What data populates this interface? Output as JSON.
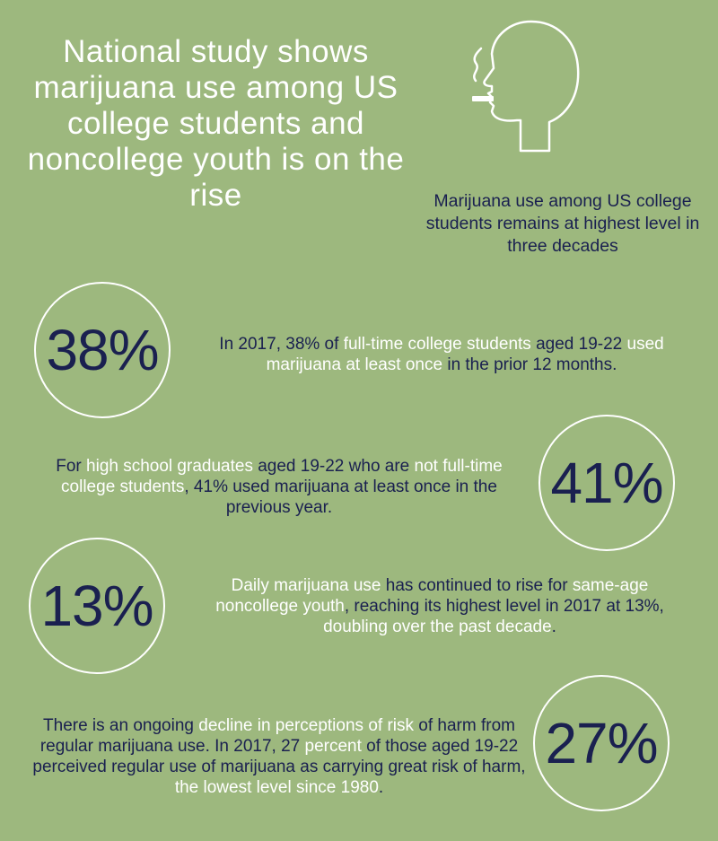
{
  "headline": "National study shows marijuana use among US college students and noncollege youth is on the rise",
  "subheading": "Marijuana use among US college students remains at highest level in three decades",
  "icons": {
    "head": "smoking-head-icon"
  },
  "colors": {
    "background": "#9db87e",
    "highlight": "#ffffff",
    "text": "#1a2050"
  },
  "stats": [
    {
      "value": "38%",
      "text": [
        {
          "t": "In 2017, 38% of "
        },
        {
          "t": "full-time college students",
          "hl": true
        },
        {
          "t": " aged 19-22 "
        },
        {
          "t": "used marijuana at least once",
          "hl": true
        },
        {
          "t": " in the prior 12 months."
        }
      ]
    },
    {
      "value": "41%",
      "text": [
        {
          "t": "For "
        },
        {
          "t": "high school graduates",
          "hl": true
        },
        {
          "t": " aged 19-22 who are "
        },
        {
          "t": "not full-time college students",
          "hl": true
        },
        {
          "t": ", 41% used marijuana at least once in the previous year."
        }
      ]
    },
    {
      "value": "13%",
      "text": [
        {
          "t": "Daily marijuana use",
          "hl": true
        },
        {
          "t": " has continued to rise for "
        },
        {
          "t": "same-age noncollege youth",
          "hl": true
        },
        {
          "t": ", reaching its highest level in 2017 at 13%, "
        },
        {
          "t": "doubling over the past decade",
          "hl": true
        },
        {
          "t": "."
        }
      ]
    },
    {
      "value": "27%",
      "text": [
        {
          "t": "There is an ongoing "
        },
        {
          "t": "decline in perceptions of risk",
          "hl": true
        },
        {
          "t": " of harm from regular marijuana use. In 2017, 27 "
        },
        {
          "t": "percent",
          "hl": true
        },
        {
          "t": " of those aged 19-22 perceived regular use of marijuana as carrying great risk of harm, "
        },
        {
          "t": "the lowest level since 1980",
          "hl": true
        },
        {
          "t": "."
        }
      ]
    }
  ]
}
